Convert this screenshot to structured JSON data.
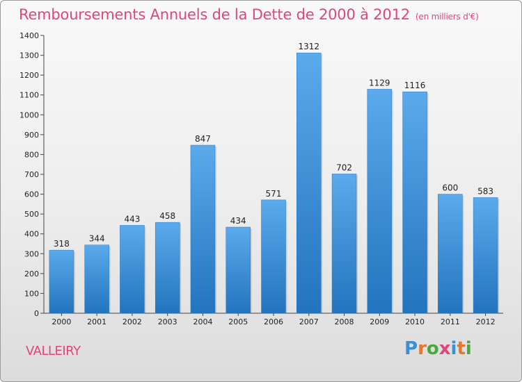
{
  "chart_data": {
    "type": "bar",
    "title": "Remboursements Annuels de la Dette de 2000 à 2012",
    "subtitle": "(en milliers d'€)",
    "categories": [
      "2000",
      "2001",
      "2002",
      "2003",
      "2004",
      "2005",
      "2006",
      "2007",
      "2008",
      "2009",
      "2010",
      "2011",
      "2012"
    ],
    "values": [
      318,
      344,
      443,
      458,
      847,
      434,
      571,
      1312,
      702,
      1129,
      1116,
      600,
      583
    ],
    "ylim": [
      0,
      1400
    ],
    "yticks": [
      0,
      100,
      200,
      300,
      400,
      500,
      600,
      700,
      800,
      900,
      1000,
      1100,
      1200,
      1300,
      1400
    ],
    "grid": false,
    "bar_color": "#3a8fd8",
    "bar_color_dark": "#2274bd"
  },
  "place": "VALLEIRY",
  "logo": {
    "letters": [
      "P",
      "r",
      "o",
      "x",
      "i",
      "t",
      "i"
    ],
    "colors": [
      "#3b8fd6",
      "#e6762e",
      "#4aa83c",
      "#e1457c",
      "#3b8fd6",
      "#e6762e",
      "#4aa83c"
    ]
  },
  "colors": {
    "title": "#e0457b",
    "axis": "#222222"
  }
}
